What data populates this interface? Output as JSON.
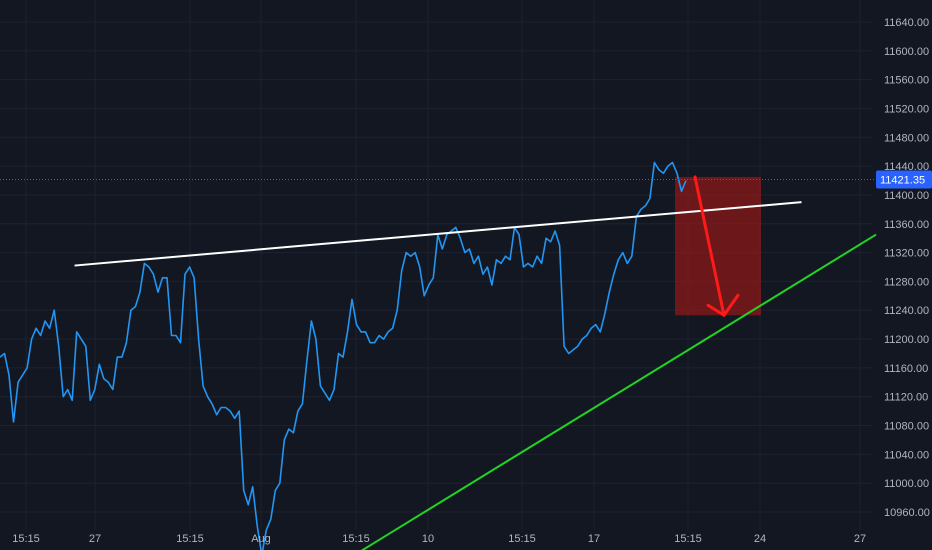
{
  "colors": {
    "background": "#131722",
    "grid": "#1e2230",
    "price_line": "#2196f3",
    "current_price_line": "#2962ff",
    "resistance_line": "#ffffff",
    "support_line": "#22d422",
    "target_box": "#8b1a1a",
    "arrow": "#ff1a1a",
    "axis_text": "#b2b5be"
  },
  "chart_data": {
    "type": "line",
    "title": "",
    "xlabel": "",
    "ylabel": "",
    "grid": true,
    "ylim": [
      10940,
      11660
    ],
    "x_tick_labels": [
      "15:15",
      "27",
      "15:15",
      "Aug",
      "15:15",
      "10",
      "15:15",
      "17",
      "15:15",
      "24",
      "27"
    ],
    "y_tick_labels": [
      "11640.00",
      "11600.00",
      "11560.00",
      "11520.00",
      "11480.00",
      "11440.00",
      "11400.00",
      "11360.00",
      "11320.00",
      "11280.00",
      "11240.00",
      "11200.00",
      "11160.00",
      "11120.00",
      "11080.00",
      "11040.00",
      "11000.00",
      "10960.00"
    ],
    "current_price": "11421.35",
    "series": [
      {
        "values": [
          11175,
          11180,
          11150,
          11085,
          11140,
          11150,
          11160,
          11200,
          11215,
          11205,
          11225,
          11215,
          11240,
          11190,
          11120,
          11130,
          11115,
          11210,
          11200,
          11190,
          11115,
          11130,
          11165,
          11145,
          11140,
          11130,
          11175,
          11175,
          11195,
          11240,
          11245,
          11265,
          11305,
          11300,
          11290,
          11265,
          11285,
          11285,
          11205,
          11205,
          11195,
          11290,
          11300,
          11285,
          11200,
          11135,
          11120,
          11110,
          11095,
          11105,
          11105,
          11100,
          11090,
          11100,
          10990,
          10970,
          10995,
          10940,
          10900,
          10935,
          10950,
          10990,
          11000,
          11060,
          11075,
          11070,
          11100,
          11110,
          11170,
          11225,
          11200,
          11135,
          11125,
          11115,
          11130,
          11180,
          11175,
          11210,
          11255,
          11220,
          11210,
          11210,
          11195,
          11195,
          11205,
          11200,
          11210,
          11215,
          11240,
          11295,
          11320,
          11315,
          11320,
          11300,
          11260,
          11275,
          11285,
          11345,
          11325,
          11345,
          11350,
          11355,
          11340,
          11320,
          11325,
          11305,
          11315,
          11290,
          11300,
          11275,
          11310,
          11305,
          11315,
          11310,
          11355,
          11345,
          11300,
          11305,
          11300,
          11315,
          11305,
          11340,
          11335,
          11350,
          11330,
          11190,
          11180,
          11185,
          11190,
          11200,
          11205,
          11215,
          11220,
          11210,
          11235,
          11265,
          11290,
          11310,
          11320,
          11305,
          11315,
          11370,
          11380,
          11385,
          11395,
          11445,
          11435,
          11430,
          11440,
          11445,
          11430,
          11405,
          11420
        ]
      }
    ],
    "annotations": {
      "resistance_line": {
        "from": [
          11302,
          0.08
        ],
        "to": [
          11390,
          0.86
        ]
      },
      "support_line": {
        "from": [
          10900,
          0.38
        ],
        "to": [
          11345,
          0.94
        ]
      },
      "target_box": {
        "top": 11425,
        "bottom": 11233
      },
      "arrow": {
        "from": 11425,
        "to": 11233
      }
    }
  }
}
